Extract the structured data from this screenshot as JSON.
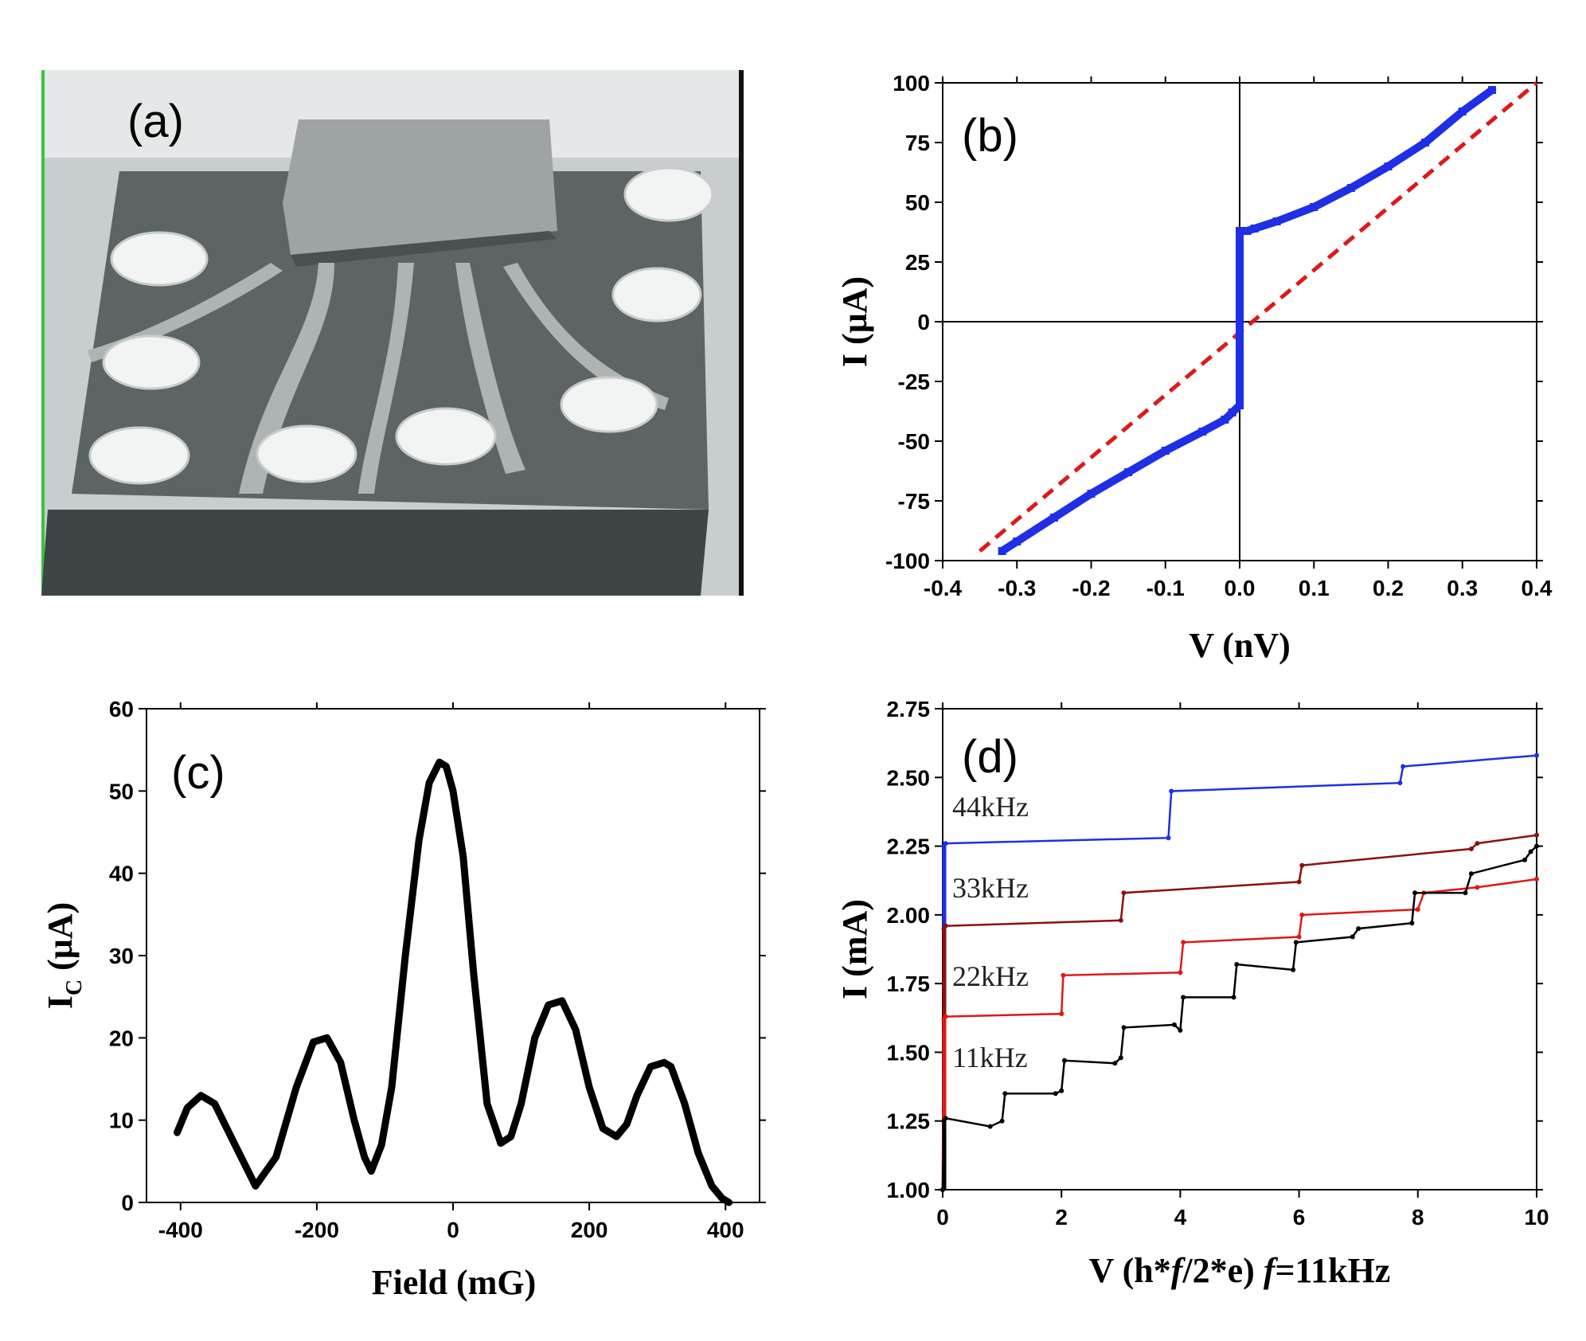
{
  "figure": {
    "panel_labels": {
      "a": "(a)",
      "b": "(b)",
      "c": "(c)",
      "d": "(d)"
    }
  },
  "colors": {
    "blue": "#1f2fe6",
    "red": "#e01818",
    "darkred": "#8b1010",
    "black": "#000000"
  },
  "chart_data": [
    {
      "panel": "(b)",
      "type": "line",
      "xlabel": "V (nV)",
      "ylabel": "I (μA)",
      "xlim": [
        -0.4,
        0.4
      ],
      "ylim": [
        -100,
        100
      ],
      "xticks": [
        "-0.4",
        "-0.3",
        "-0.2",
        "-0.1",
        "0.0",
        "0.1",
        "0.2",
        "0.3",
        "0.4"
      ],
      "yticks": [
        "100",
        "75",
        "50",
        "25",
        "0",
        "-25",
        "-50",
        "-75",
        "-100"
      ],
      "grid": false,
      "series": [
        {
          "style": "blue markers",
          "x": [
            -0.32,
            -0.3,
            -0.25,
            -0.2,
            -0.15,
            -0.1,
            -0.05,
            -0.02,
            -0.01,
            0.0,
            0.0,
            0.0,
            0.0,
            0.0,
            0.0,
            0.01,
            0.02,
            0.05,
            0.1,
            0.15,
            0.2,
            0.25,
            0.3,
            0.34
          ],
          "y": [
            -96,
            -92,
            -82,
            -72,
            -63,
            -54,
            -46,
            -41,
            -38,
            -35,
            -20,
            -5,
            10,
            25,
            38,
            38,
            39,
            42,
            48,
            56,
            65,
            75,
            88,
            97
          ]
        },
        {
          "style": "red dashed",
          "x": [
            -0.35,
            0.4
          ],
          "y": [
            -96,
            100
          ]
        }
      ]
    },
    {
      "panel": "(c)",
      "type": "line",
      "xlabel": "Field (mG)",
      "ylabel": "I_C (μA)",
      "xlim": [
        -450,
        450
      ],
      "ylim": [
        0,
        60
      ],
      "xticks": [
        "-400",
        "-200",
        "0",
        "200",
        "400"
      ],
      "yticks": [
        "60",
        "50",
        "40",
        "30",
        "20",
        "10",
        "0"
      ],
      "grid": false,
      "series": [
        {
          "x": [
            -405,
            -390,
            -370,
            -350,
            -320,
            -290,
            -260,
            -230,
            -205,
            -185,
            -165,
            -145,
            -130,
            -120,
            -105,
            -90,
            -70,
            -50,
            -35,
            -20,
            -10,
            0,
            15,
            30,
            50,
            70,
            85,
            100,
            120,
            140,
            160,
            180,
            200,
            220,
            240,
            255,
            270,
            290,
            310,
            320,
            340,
            360,
            380,
            395,
            405
          ],
          "y": [
            8.5,
            11.5,
            13,
            12,
            7,
            2,
            5.5,
            14,
            19.5,
            20,
            17,
            10,
            5.5,
            3.8,
            7,
            14,
            30,
            44,
            51,
            53.5,
            53,
            50,
            42,
            28,
            12,
            7.2,
            8,
            12,
            20,
            24,
            24.5,
            21,
            14,
            9,
            8,
            9.5,
            13,
            16.5,
            17,
            16.5,
            12,
            6,
            2,
            0.5,
            0
          ]
        }
      ]
    },
    {
      "panel": "(d)",
      "type": "line",
      "xlabel": "V (h*f/2*e) f=11kHz",
      "ylabel": "I (mA)",
      "xlim": [
        0,
        10
      ],
      "ylim": [
        1.0,
        2.75
      ],
      "xticks": [
        "0",
        "2",
        "4",
        "6",
        "8",
        "10"
      ],
      "yticks": [
        "2.75",
        "2.50",
        "2.25",
        "2.00",
        "1.75",
        "1.50",
        "1.25",
        "1.00"
      ],
      "grid": false,
      "series": [
        {
          "name": "44kHz",
          "color": "blue",
          "x": [
            0,
            0.02,
            0.05,
            3.8,
            3.85,
            7.7,
            7.75,
            10
          ],
          "y": [
            1.0,
            2.25,
            2.26,
            2.28,
            2.45,
            2.48,
            2.54,
            2.58
          ]
        },
        {
          "name": "33kHz",
          "color": "darkred",
          "x": [
            0,
            0.02,
            0.05,
            3.0,
            3.05,
            6.0,
            6.05,
            8.9,
            9.0,
            10
          ],
          "y": [
            1.0,
            1.95,
            1.96,
            1.98,
            2.08,
            2.12,
            2.18,
            2.24,
            2.26,
            2.29
          ]
        },
        {
          "name": "22kHz",
          "color": "red",
          "x": [
            0,
            0.02,
            0.05,
            2.0,
            2.03,
            4.0,
            4.05,
            6.0,
            6.05,
            8.0,
            8.1,
            9.0,
            10
          ],
          "y": [
            1.0,
            1.62,
            1.63,
            1.64,
            1.78,
            1.79,
            1.9,
            1.92,
            2.0,
            2.02,
            2.08,
            2.1,
            2.13
          ]
        },
        {
          "name": "11kHz",
          "color": "black",
          "x": [
            0,
            0.02,
            0.05,
            0.8,
            1.0,
            1.05,
            1.9,
            2.0,
            2.05,
            2.9,
            3.0,
            3.05,
            3.9,
            4.0,
            4.05,
            4.9,
            4.95,
            5.9,
            5.95,
            6.9,
            7.0,
            7.9,
            7.95,
            8.8,
            8.9,
            9.8,
            9.9,
            10
          ],
          "y": [
            1.0,
            1.25,
            1.26,
            1.23,
            1.25,
            1.35,
            1.35,
            1.36,
            1.47,
            1.46,
            1.48,
            1.59,
            1.6,
            1.58,
            1.7,
            1.7,
            1.82,
            1.8,
            1.9,
            1.92,
            1.95,
            1.97,
            2.08,
            2.08,
            2.15,
            2.2,
            2.23,
            2.25
          ]
        }
      ]
    }
  ]
}
